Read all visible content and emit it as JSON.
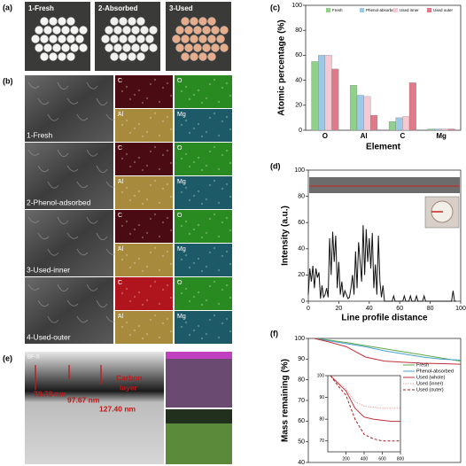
{
  "panel_labels": [
    "(a)",
    "(b)",
    "(c)",
    "(d)",
    "(e)",
    "(f)"
  ],
  "photos": [
    "1-Fresh",
    "2-Absorbed",
    "3-Used"
  ],
  "sem": {
    "samples": [
      "1-Fresh",
      "2-Phenol-adsorbed",
      "3-Used-inner",
      "4-Used-outer"
    ],
    "elements": [
      "C",
      "O",
      "Al",
      "Mg"
    ]
  },
  "tem": {
    "tag": "BF-S",
    "thicknesses": [
      "70.78 nm",
      "97.67 nm",
      "127.40 nm"
    ],
    "carbon_layer": [
      "Carbon",
      "layer"
    ]
  },
  "chart_data": [
    {
      "type": "bar",
      "ylabel": "Atomic percentage (%)",
      "xlabel": "Element",
      "categories": [
        "O",
        "Al",
        "C",
        "Mg"
      ],
      "series": [
        {
          "name": "Fresh",
          "color": "#8fd08a",
          "values": [
            55,
            36,
            7,
            1
          ]
        },
        {
          "name": "Phenol-absorbed",
          "color": "#9cc8ea",
          "values": [
            60,
            28,
            10,
            1
          ]
        },
        {
          "name": "Used inner",
          "color": "#f6c8d2",
          "values": [
            60,
            27,
            11,
            1
          ]
        },
        {
          "name": "Used outer",
          "color": "#e07a8a",
          "values": [
            49,
            12,
            38,
            1
          ]
        }
      ],
      "ylim": [
        0,
        100
      ],
      "yticks": [
        0,
        20,
        40,
        60,
        80,
        100
      ]
    },
    {
      "type": "line",
      "ylabel": "Intensity (a.u.)",
      "xlabel": "Line profile distance",
      "x": [
        0,
        1,
        2,
        3,
        4,
        5,
        6,
        7,
        8,
        9,
        10,
        11,
        12,
        13,
        14,
        15,
        16,
        17,
        18,
        19,
        20,
        21,
        22,
        23,
        24,
        25,
        26,
        27,
        28,
        29,
        30,
        31,
        32,
        33,
        34,
        35,
        36,
        37,
        38,
        39,
        40,
        41,
        42,
        43,
        44,
        45,
        46,
        47,
        48,
        49,
        50,
        52,
        55,
        56,
        57,
        60,
        62,
        63,
        64,
        66,
        67,
        68,
        70,
        71,
        72,
        75,
        76,
        77,
        80,
        94,
        95,
        96,
        97
      ],
      "series": [
        {
          "color": "#111111",
          "values": [
            5,
            25,
            15,
            27,
            10,
            25,
            18,
            22,
            2,
            12,
            3,
            5,
            10,
            3,
            48,
            20,
            53,
            30,
            50,
            10,
            30,
            5,
            15,
            3,
            8,
            5,
            2,
            3,
            10,
            20,
            5,
            38,
            10,
            45,
            30,
            15,
            58,
            20,
            55,
            30,
            48,
            25,
            52,
            10,
            28,
            5,
            50,
            15,
            3,
            12,
            0,
            0,
            0,
            4,
            0,
            0,
            0,
            4,
            0,
            0,
            4,
            0,
            0,
            4,
            0,
            0,
            4,
            0,
            0,
            0,
            8,
            0,
            0
          ]
        }
      ],
      "xlim": [
        0,
        100
      ],
      "xticks": [
        0,
        20,
        40,
        60,
        80,
        100
      ],
      "ylim": [
        0,
        100
      ],
      "yticks": [
        0,
        20,
        40,
        60,
        80,
        100
      ]
    },
    {
      "type": "line",
      "ylabel": "Mass remaining (%)",
      "x": [
        30,
        100,
        200,
        300,
        400,
        500,
        600,
        700,
        800
      ],
      "series": [
        {
          "name": "Fresh",
          "color": "#5aaa46",
          "values": [
            100,
            99.3,
            98,
            96.5,
            95,
            93.5,
            92,
            90.5,
            89
          ]
        },
        {
          "name": "Phenol-absorbed",
          "color": "#4aa0d0",
          "values": [
            100,
            99,
            97.5,
            96,
            94,
            92.5,
            91,
            90,
            89.5
          ]
        },
        {
          "name": "Used (whole)",
          "color": "#c0303a",
          "values": [
            100,
            98.5,
            96,
            91,
            89,
            88.5,
            88,
            87.8,
            87.5
          ]
        }
      ],
      "xlim": [
        0,
        800
      ],
      "ylim": [
        40,
        100
      ],
      "yticks": [
        40,
        50,
        60,
        70,
        80,
        90,
        100
      ]
    },
    {
      "type": "line",
      "x": [
        30,
        100,
        200,
        300,
        400,
        500,
        600,
        700,
        800
      ],
      "series": [
        {
          "color": "#c0303a",
          "values": [
            100,
            97,
            93,
            85,
            81,
            80,
            79.5,
            79,
            79
          ]
        },
        {
          "name": "Used (inner)",
          "color": "#e89090",
          "style": "dotted",
          "values": [
            100,
            97.5,
            94,
            88,
            86,
            85.5,
            85,
            85,
            85
          ]
        },
        {
          "name": "Used (outer)",
          "color": "#a02020",
          "style": "dashed",
          "values": [
            100,
            96,
            91,
            80,
            73,
            71,
            70,
            70,
            70
          ]
        }
      ],
      "xlim": [
        0,
        800
      ],
      "xticks": [
        200,
        400,
        600,
        800
      ],
      "ylim": [
        65,
        100
      ],
      "yticks": [
        70,
        80,
        90,
        100
      ]
    }
  ]
}
